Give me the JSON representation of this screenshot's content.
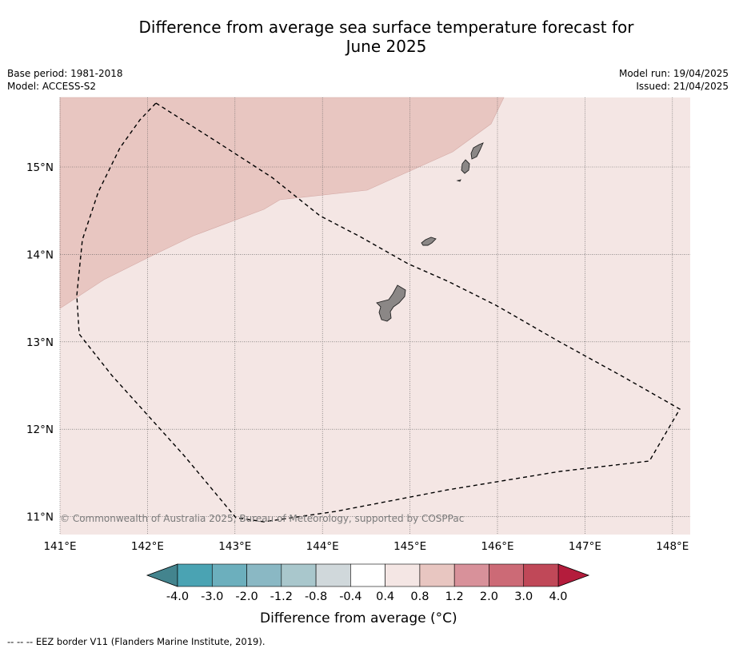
{
  "title_line1": "Difference from average sea surface temperature forecast for",
  "title_line2": "June 2025",
  "meta_left": [
    "Base period: 1981-2018",
    "Model: ACCESS-S2"
  ],
  "meta_right": [
    "Model run: 19/04/2025",
    "Issued: 21/04/2025"
  ],
  "lat_labels": [
    "15°N",
    "14°N",
    "13°N",
    "12°N",
    "11°N"
  ],
  "lat_values": [
    15,
    14,
    13,
    12,
    11
  ],
  "lon_labels": [
    "141°E",
    "142°E",
    "143°E",
    "144°E",
    "145°E",
    "146°E",
    "147°E",
    "148°E"
  ],
  "lon_values": [
    141,
    142,
    143,
    144,
    145,
    146,
    147,
    148
  ],
  "copyright": "© Commonwealth of Australia 2025, Bureau of Meteorology, supported by COSPPac",
  "colorbar": {
    "title": "Difference from average (°C)",
    "tick_labels": [
      "-4.0",
      "-3.0",
      "-2.0",
      "-1.2",
      "-0.8",
      "-0.4",
      "0.4",
      "0.8",
      "1.2",
      "2.0",
      "3.0",
      "4.0"
    ],
    "colors": [
      "#4aa3b3",
      "#6cafbd",
      "#8ab8c4",
      "#a9c7cc",
      "#d0d8db",
      "#ffffff",
      "#f4e6e4",
      "#e8c6c1",
      "#d8919a",
      "#cc6a76",
      "#c04858"
    ],
    "under_color": "#43848e",
    "over_color": "#b41c3c"
  },
  "anomaly_regions": [
    {
      "range": "0.8 to 1.2",
      "color": "#e8c6c1"
    },
    {
      "range": "0.4 to 0.8",
      "color": "#f4e6e4"
    }
  ],
  "footnote": "-- -- -- EEZ border V11 (Flanders Marine Institute, 2019)."
}
